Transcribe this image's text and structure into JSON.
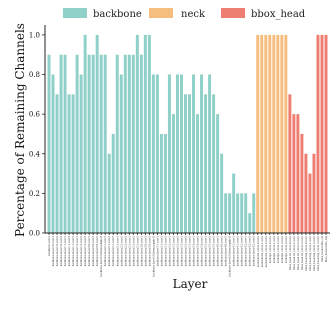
{
  "chart_data": {
    "type": "bar",
    "xlabel": "Layer",
    "ylabel": "Percentage of Remaining Channels",
    "ylim": [
      0,
      1.05
    ],
    "yticks": [
      "0.0",
      "0.2",
      "0.4",
      "0.6",
      "0.8",
      "1.0"
    ],
    "legend_position": "top",
    "grid": false,
    "colors": {
      "backbone": "#8fd0c8",
      "neck": "#f5bd7e",
      "bbox_head": "#ef7e72"
    },
    "legend": [
      "backbone",
      "neck",
      "bbox_head"
    ],
    "categories": [
      "backbone.conv1",
      "backbone.layer1.0.conv1",
      "backbone.layer1.0.conv2",
      "backbone.layer1.0.conv3",
      "backbone.layer1.1.conv1",
      "backbone.layer1.1.conv2",
      "backbone.layer1.1.conv3",
      "backbone.layer1.2.conv1",
      "backbone.layer1.2.conv2",
      "backbone.layer1.2.conv3",
      "backbone.layer2.0.conv1",
      "backbone.layer2.0.conv2",
      "backbone.layer2.0.conv3",
      "backbone.layer2.0.downsample.0",
      "backbone.layer2.1.conv1",
      "backbone.layer2.1.conv2",
      "backbone.layer2.1.conv3",
      "backbone.layer2.2.conv1",
      "backbone.layer2.2.conv2",
      "backbone.layer2.2.conv3",
      "backbone.layer2.3.conv1",
      "backbone.layer2.3.conv2",
      "backbone.layer2.3.conv3",
      "backbone.layer3.0.conv1",
      "backbone.layer3.0.conv2",
      "backbone.layer3.0.conv3",
      "backbone.layer3.0.downsample.0",
      "backbone.layer3.1.conv1",
      "backbone.layer3.1.conv2",
      "backbone.layer3.1.conv3",
      "backbone.layer3.2.conv1",
      "backbone.layer3.2.conv2",
      "backbone.layer3.2.conv3",
      "backbone.layer3.3.conv1",
      "backbone.layer3.3.conv2",
      "backbone.layer3.3.conv3",
      "backbone.layer3.4.conv1",
      "backbone.layer3.4.conv2",
      "backbone.layer3.4.conv3",
      "backbone.layer3.5.conv1",
      "backbone.layer3.5.conv2",
      "backbone.layer3.5.conv3",
      "backbone.layer4.0.conv1",
      "backbone.layer4.0.conv2",
      "backbone.layer4.0.conv3",
      "backbone.layer4.0.downsample.0",
      "backbone.layer4.1.conv1",
      "backbone.layer4.1.conv2",
      "backbone.layer4.1.conv3",
      "backbone.layer4.2.conv1",
      "backbone.layer4.2.conv2",
      "backbone.layer4.2.conv3",
      "neck.lateral_convs.0.conv",
      "neck.lateral_convs.1.conv",
      "neck.lateral_convs.2.conv",
      "neck.fpn_convs.0.conv",
      "neck.fpn_convs.1.conv",
      "neck.fpn_convs.2.conv",
      "neck.fpn_convs.3.conv",
      "neck.fpn_convs.4.conv",
      "bbox_head.cls_convs.0.conv",
      "bbox_head.cls_convs.1.conv",
      "bbox_head.cls_convs.2.conv",
      "bbox_head.cls_convs.3.conv",
      "bbox_head.reg_convs.0.conv",
      "bbox_head.reg_convs.1.conv",
      "bbox_head.reg_convs.2.conv",
      "bbox_head.reg_convs.3.conv",
      "bbox_head.retina_cls",
      "bbox_head.retina_reg"
    ],
    "groups": [
      "backbone",
      "backbone",
      "backbone",
      "backbone",
      "backbone",
      "backbone",
      "backbone",
      "backbone",
      "backbone",
      "backbone",
      "backbone",
      "backbone",
      "backbone",
      "backbone",
      "backbone",
      "backbone",
      "backbone",
      "backbone",
      "backbone",
      "backbone",
      "backbone",
      "backbone",
      "backbone",
      "backbone",
      "backbone",
      "backbone",
      "backbone",
      "backbone",
      "backbone",
      "backbone",
      "backbone",
      "backbone",
      "backbone",
      "backbone",
      "backbone",
      "backbone",
      "backbone",
      "backbone",
      "backbone",
      "backbone",
      "backbone",
      "backbone",
      "backbone",
      "backbone",
      "backbone",
      "backbone",
      "backbone",
      "backbone",
      "backbone",
      "backbone",
      "backbone",
      "backbone",
      "neck",
      "neck",
      "neck",
      "neck",
      "neck",
      "neck",
      "neck",
      "neck",
      "bbox_head",
      "bbox_head",
      "bbox_head",
      "bbox_head",
      "bbox_head",
      "bbox_head",
      "bbox_head",
      "bbox_head",
      "bbox_head",
      "bbox_head"
    ],
    "values": [
      0.9,
      0.8,
      0.7,
      0.9,
      0.9,
      0.7,
      0.7,
      0.9,
      0.8,
      1.0,
      0.9,
      0.9,
      1.0,
      0.9,
      0.9,
      0.4,
      0.5,
      0.9,
      0.8,
      0.9,
      0.9,
      0.9,
      1.0,
      0.9,
      1.0,
      1.0,
      0.8,
      0.8,
      0.5,
      0.5,
      0.8,
      0.6,
      0.8,
      0.8,
      0.7,
      0.7,
      0.8,
      0.6,
      0.8,
      0.7,
      0.8,
      0.7,
      0.6,
      0.4,
      0.2,
      0.2,
      0.3,
      0.2,
      0.2,
      0.2,
      0.1,
      0.2,
      1.0,
      1.0,
      1.0,
      1.0,
      1.0,
      1.0,
      1.0,
      1.0,
      0.7,
      0.6,
      0.6,
      0.5,
      0.4,
      0.3,
      0.4,
      1.0,
      1.0,
      1.0
    ]
  }
}
